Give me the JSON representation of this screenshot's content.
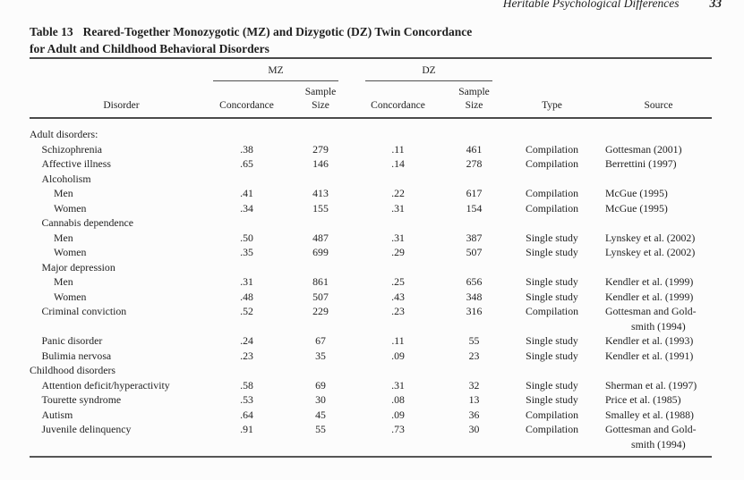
{
  "page": {
    "running_head": "Heritable Psychological Differences",
    "page_number": "33"
  },
  "table": {
    "label": "Table 13",
    "title_line1": "Reared-Together Monozygotic (MZ) and Dizygotic (DZ) Twin Concordance",
    "title_line2": "for Adult and Childhood Behavioral Disorders",
    "spanners": {
      "mz": "MZ",
      "dz": "DZ"
    },
    "headers": {
      "disorder": "Disorder",
      "concordance": "Concordance",
      "sample_line1": "Sample",
      "sample_line2": "Size",
      "type": "Type",
      "source": "Source"
    },
    "rows": [
      {
        "label": "Adult disorders:",
        "indent": 0,
        "mz_conc": "",
        "mz_n": "",
        "dz_conc": "",
        "dz_n": "",
        "type": "",
        "source": "",
        "source2": ""
      },
      {
        "label": "Schizophrenia",
        "indent": 1,
        "mz_conc": ".38",
        "mz_n": "279",
        "dz_conc": ".11",
        "dz_n": "461",
        "type": "Compilation",
        "source": "Gottesman (2001)",
        "source2": ""
      },
      {
        "label": "Affective illness",
        "indent": 1,
        "mz_conc": ".65",
        "mz_n": "146",
        "dz_conc": ".14",
        "dz_n": "278",
        "type": "Compilation",
        "source": "Berrettini (1997)",
        "source2": ""
      },
      {
        "label": "Alcoholism",
        "indent": 1,
        "mz_conc": "",
        "mz_n": "",
        "dz_conc": "",
        "dz_n": "",
        "type": "",
        "source": "",
        "source2": ""
      },
      {
        "label": "Men",
        "indent": 2,
        "mz_conc": ".41",
        "mz_n": "413",
        "dz_conc": ".22",
        "dz_n": "617",
        "type": "Compilation",
        "source": "McGue (1995)",
        "source2": ""
      },
      {
        "label": "Women",
        "indent": 2,
        "mz_conc": ".34",
        "mz_n": "155",
        "dz_conc": ".31",
        "dz_n": "154",
        "type": "Compilation",
        "source": "McGue (1995)",
        "source2": ""
      },
      {
        "label": "Cannabis dependence",
        "indent": 1,
        "mz_conc": "",
        "mz_n": "",
        "dz_conc": "",
        "dz_n": "",
        "type": "",
        "source": "",
        "source2": ""
      },
      {
        "label": "Men",
        "indent": 2,
        "mz_conc": ".50",
        "mz_n": "487",
        "dz_conc": ".31",
        "dz_n": "387",
        "type": "Single study",
        "source": "Lynskey et al. (2002)",
        "source2": ""
      },
      {
        "label": "Women",
        "indent": 2,
        "mz_conc": ".35",
        "mz_n": "699",
        "dz_conc": ".29",
        "dz_n": "507",
        "type": "Single study",
        "source": "Lynskey et al. (2002)",
        "source2": ""
      },
      {
        "label": "Major depression",
        "indent": 1,
        "mz_conc": "",
        "mz_n": "",
        "dz_conc": "",
        "dz_n": "",
        "type": "",
        "source": "",
        "source2": ""
      },
      {
        "label": "Men",
        "indent": 2,
        "mz_conc": ".31",
        "mz_n": "861",
        "dz_conc": ".25",
        "dz_n": "656",
        "type": "Single study",
        "source": "Kendler et al. (1999)",
        "source2": ""
      },
      {
        "label": "Women",
        "indent": 2,
        "mz_conc": ".48",
        "mz_n": "507",
        "dz_conc": ".43",
        "dz_n": "348",
        "type": "Single study",
        "source": "Kendler et al. (1999)",
        "source2": ""
      },
      {
        "label": "Criminal conviction",
        "indent": 1,
        "mz_conc": ".52",
        "mz_n": "229",
        "dz_conc": ".23",
        "dz_n": "316",
        "type": "Compilation",
        "source": "Gottesman and Gold-",
        "source2": "smith (1994)"
      },
      {
        "label": "Panic disorder",
        "indent": 1,
        "mz_conc": ".24",
        "mz_n": "67",
        "dz_conc": ".11",
        "dz_n": "55",
        "type": "Single study",
        "source": "Kendler et al. (1993)",
        "source2": ""
      },
      {
        "label": "Bulimia nervosa",
        "indent": 1,
        "mz_conc": ".23",
        "mz_n": "35",
        "dz_conc": ".09",
        "dz_n": "23",
        "type": "Single study",
        "source": "Kendler et al. (1991)",
        "source2": ""
      },
      {
        "label": "Childhood disorders",
        "indent": 0,
        "mz_conc": "",
        "mz_n": "",
        "dz_conc": "",
        "dz_n": "",
        "type": "",
        "source": "",
        "source2": ""
      },
      {
        "label": "Attention deficit/hyperactivity",
        "indent": 1,
        "mz_conc": ".58",
        "mz_n": "69",
        "dz_conc": ".31",
        "dz_n": "32",
        "type": "Single study",
        "source": "Sherman et al. (1997)",
        "source2": ""
      },
      {
        "label": "Tourette syndrome",
        "indent": 1,
        "mz_conc": ".53",
        "mz_n": "30",
        "dz_conc": ".08",
        "dz_n": "13",
        "type": "Single study",
        "source": "Price et al. (1985)",
        "source2": ""
      },
      {
        "label": "Autism",
        "indent": 1,
        "mz_conc": ".64",
        "mz_n": "45",
        "dz_conc": ".09",
        "dz_n": "36",
        "type": "Compilation",
        "source": "Smalley et al. (1988)",
        "source2": ""
      },
      {
        "label": "Juvenile delinquency",
        "indent": 1,
        "mz_conc": ".91",
        "mz_n": "55",
        "dz_conc": ".73",
        "dz_n": "30",
        "type": "Compilation",
        "source": "Gottesman and Gold-",
        "source2": "smith (1994)"
      }
    ]
  }
}
